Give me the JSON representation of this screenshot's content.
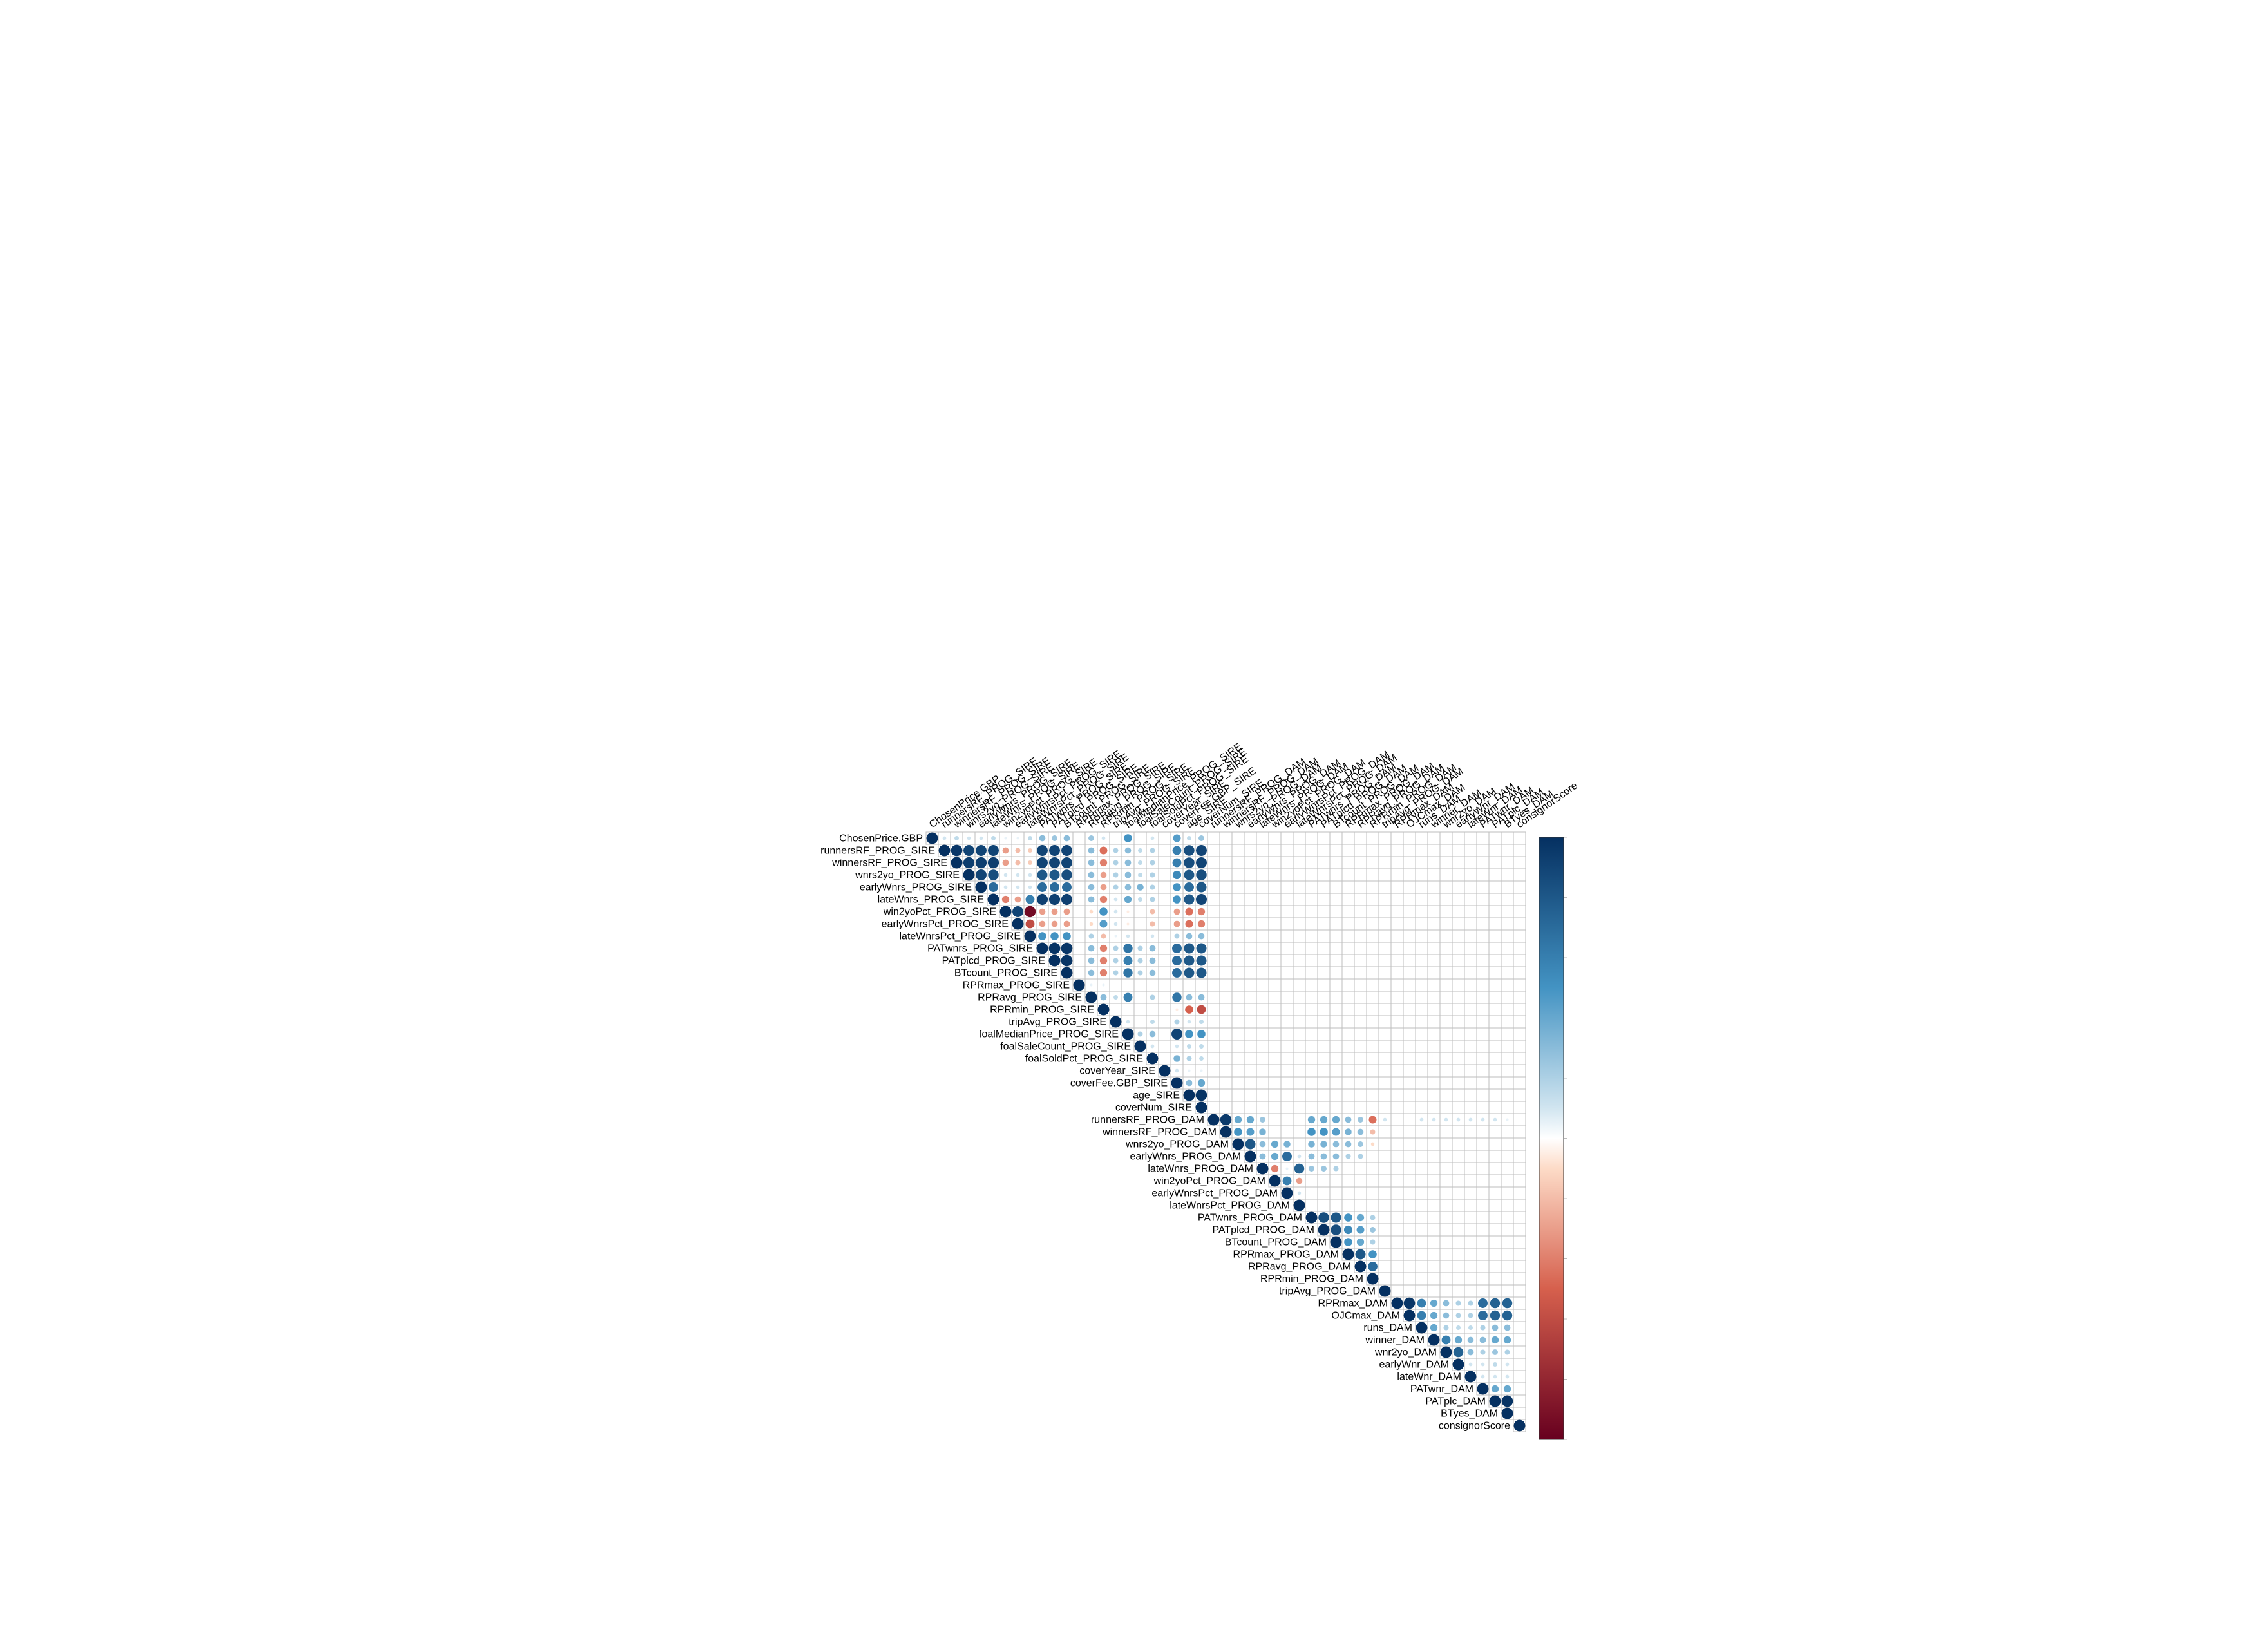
{
  "chart_data": {
    "type": "heatmap",
    "subtype": "correlation-upper-circle",
    "title": "",
    "variables": [
      "ChosenPrice.GBP",
      "runnersRF_PROG_SIRE",
      "winnersRF_PROG_SIRE",
      "wnrs2yo_PROG_SIRE",
      "earlyWnrs_PROG_SIRE",
      "lateWnrs_PROG_SIRE",
      "win2yoPct_PROG_SIRE",
      "earlyWnrsPct_PROG_SIRE",
      "lateWnrsPct_PROG_SIRE",
      "PATwnrs_PROG_SIRE",
      "PATplcd_PROG_SIRE",
      "BTcount_PROG_SIRE",
      "RPRmax_PROG_SIRE",
      "RPRavg_PROG_SIRE",
      "RPRmin_PROG_SIRE",
      "tripAvg_PROG_SIRE",
      "foalMedianPrice_PROG_SIRE",
      "foalSaleCount_PROG_SIRE",
      "foalSoldPct_PROG_SIRE",
      "coverYear_SIRE",
      "coverFee.GBP_SIRE",
      "age_SIRE",
      "coverNum_SIRE",
      "runnersRF_PROG_DAM",
      "winnersRF_PROG_DAM",
      "wnrs2yo_PROG_DAM",
      "earlyWnrs_PROG_DAM",
      "lateWnrs_PROG_DAM",
      "win2yoPct_PROG_DAM",
      "earlyWnrsPct_PROG_DAM",
      "lateWnrsPct_PROG_DAM",
      "PATwnrs_PROG_DAM",
      "PATplcd_PROG_DAM",
      "BTcount_PROG_DAM",
      "RPRmax_PROG_DAM",
      "RPRavg_PROG_DAM",
      "RPRmin_PROG_DAM",
      "tripAvg_PROG_DAM",
      "RPRmax_DAM",
      "OJCmax_DAM",
      "runs_DAM",
      "winner_DAM",
      "wnr2yo_DAM",
      "earlyWnr_DAM",
      "lateWnr_DAM",
      "PATwnr_DAM",
      "PATplc_DAM",
      "BTyes_DAM",
      "consignorScore"
    ],
    "correlations": [
      {
        "i": 0,
        "j": [
          1,
          2,
          3,
          4,
          5,
          6,
          7,
          8,
          9,
          10,
          11,
          13,
          14,
          16,
          18,
          20,
          21,
          22
        ],
        "r": [
          0.1,
          0.15,
          0.1,
          0.1,
          0.15,
          0.05,
          0.05,
          0.15,
          0.3,
          0.25,
          0.3,
          0.25,
          0.1,
          0.5,
          0.1,
          0.45,
          0.15,
          0.25
        ]
      },
      {
        "i": 1,
        "j": [
          2,
          3,
          4,
          5,
          6,
          7,
          8,
          9,
          10,
          11,
          13,
          14,
          15,
          16,
          17,
          18,
          20,
          21,
          22
        ],
        "r": [
          0.97,
          0.9,
          0.9,
          0.9,
          -0.3,
          -0.2,
          -0.15,
          0.9,
          0.9,
          0.9,
          0.3,
          -0.45,
          0.2,
          0.3,
          0.15,
          0.2,
          0.6,
          0.85,
          0.9
        ]
      },
      {
        "i": 2,
        "j": [
          3,
          4,
          5,
          6,
          7,
          8,
          9,
          10,
          11,
          13,
          14,
          15,
          16,
          17,
          18,
          20,
          21,
          22
        ],
        "r": [
          0.93,
          0.93,
          0.93,
          -0.3,
          -0.2,
          -0.15,
          0.9,
          0.9,
          0.9,
          0.3,
          -0.4,
          0.2,
          0.3,
          0.15,
          0.2,
          0.6,
          0.85,
          0.9
        ]
      },
      {
        "i": 3,
        "j": [
          4,
          5,
          6,
          7,
          8,
          9,
          10,
          11,
          13,
          14,
          15,
          16,
          17,
          18,
          20,
          21,
          22
        ],
        "r": [
          0.9,
          0.85,
          0.1,
          0.1,
          0.1,
          0.8,
          0.8,
          0.85,
          0.3,
          -0.3,
          0.2,
          0.3,
          0.15,
          0.2,
          0.55,
          0.8,
          0.85
        ]
      },
      {
        "i": 4,
        "j": [
          5,
          6,
          7,
          8,
          9,
          10,
          11,
          13,
          14,
          15,
          16,
          17,
          18,
          20,
          21,
          22
        ],
        "r": [
          0.7,
          0.1,
          0.1,
          0.1,
          0.7,
          0.7,
          0.7,
          0.3,
          -0.3,
          0.2,
          0.3,
          0.35,
          0.2,
          0.5,
          0.7,
          0.8
        ]
      },
      {
        "i": 5,
        "j": [
          6,
          7,
          8,
          9,
          10,
          11,
          13,
          14,
          15,
          16,
          17,
          18,
          20,
          21,
          22
        ],
        "r": [
          -0.4,
          -0.3,
          0.6,
          0.92,
          0.92,
          0.92,
          0.3,
          -0.4,
          0.1,
          0.4,
          0.15,
          0.2,
          0.5,
          0.8,
          0.9
        ]
      },
      {
        "i": 6,
        "j": [
          7,
          8,
          9,
          10,
          11,
          13,
          14,
          15,
          16,
          18,
          20,
          21,
          22
        ],
        "r": [
          0.9,
          -0.95,
          -0.3,
          -0.3,
          -0.3,
          -0.1,
          0.5,
          0.1,
          -0.05,
          -0.2,
          -0.3,
          -0.45,
          -0.4
        ]
      },
      {
        "i": 7,
        "j": [
          8,
          9,
          10,
          11,
          13,
          14,
          15,
          16,
          18,
          20,
          21,
          22
        ],
        "r": [
          -0.6,
          -0.3,
          -0.3,
          -0.3,
          -0.1,
          0.45,
          0.1,
          -0.05,
          -0.2,
          -0.3,
          -0.45,
          -0.4
        ]
      },
      {
        "i": 8,
        "j": [
          9,
          10,
          11,
          13,
          14,
          15,
          16,
          18,
          20,
          21,
          22
        ],
        "r": [
          0.5,
          0.5,
          0.5,
          0.2,
          -0.2,
          0.05,
          0.1,
          0.1,
          0.2,
          0.3,
          0.3
        ]
      },
      {
        "i": 9,
        "j": [
          10,
          11,
          13,
          14,
          15,
          16,
          17,
          18,
          20,
          21,
          22
        ],
        "r": [
          0.98,
          0.97,
          0.3,
          -0.4,
          0.2,
          0.65,
          0.2,
          0.3,
          0.7,
          0.8,
          0.8
        ]
      },
      {
        "i": 10,
        "j": [
          11,
          13,
          14,
          15,
          16,
          17,
          18,
          20,
          21,
          22
        ],
        "r": [
          0.98,
          0.3,
          -0.4,
          0.2,
          0.6,
          0.2,
          0.3,
          0.7,
          0.8,
          0.8
        ]
      },
      {
        "i": 11,
        "j": [
          13,
          14,
          15,
          16,
          17,
          18,
          20,
          21,
          22
        ],
        "r": [
          0.3,
          -0.4,
          0.2,
          0.65,
          0.2,
          0.3,
          0.7,
          0.8,
          0.8
        ]
      },
      {
        "i": 12,
        "j": [
          13,
          14
        ],
        "r": [
          0.05,
          0.05
        ]
      },
      {
        "i": 13,
        "j": [
          14,
          15,
          16,
          18,
          20,
          21,
          22
        ],
        "r": [
          0.3,
          0.15,
          0.6,
          0.2,
          0.65,
          0.3,
          0.3
        ]
      },
      {
        "i": 14,
        "j": [
          20,
          21,
          22
        ],
        "r": [
          -0.05,
          -0.5,
          -0.6
        ]
      },
      {
        "i": 15,
        "j": [
          16,
          18,
          20,
          21,
          22
        ],
        "r": [
          0.1,
          0.15,
          0.2,
          0.1,
          0.15
        ]
      },
      {
        "i": 16,
        "j": [
          17,
          18,
          20,
          21,
          22
        ],
        "r": [
          0.2,
          0.3,
          0.9,
          0.5,
          0.5
        ]
      },
      {
        "i": 17,
        "j": [
          18,
          20,
          21,
          22
        ],
        "r": [
          0.1,
          0.1,
          0.15,
          0.15
        ]
      },
      {
        "i": 18,
        "j": [
          20,
          21,
          22
        ],
        "r": [
          0.35,
          0.2,
          0.15
        ]
      },
      {
        "i": 19,
        "j": [
          20,
          21,
          22
        ],
        "r": [
          0.1,
          0.05,
          0.05
        ]
      },
      {
        "i": 20,
        "j": [
          21,
          22
        ],
        "r": [
          0.3,
          0.4
        ]
      },
      {
        "i": 21,
        "j": [
          22
        ],
        "r": [
          0.98
        ]
      },
      {
        "i": 23,
        "j": [
          24,
          25,
          26,
          27,
          31,
          32,
          33,
          34,
          35,
          36,
          37,
          40,
          41,
          42,
          43,
          44,
          45,
          46,
          47
        ],
        "r": [
          0.95,
          0.4,
          0.4,
          0.25,
          0.4,
          0.4,
          0.4,
          0.3,
          0.25,
          -0.45,
          0.1,
          0.1,
          0.1,
          0.1,
          0.1,
          0.1,
          0.1,
          0.1,
          0.05
        ]
      },
      {
        "i": 24,
        "j": [
          25,
          26,
          27,
          31,
          32,
          33,
          34,
          35,
          36
        ],
        "r": [
          0.5,
          0.45,
          0.35,
          0.5,
          0.5,
          0.45,
          0.35,
          0.3,
          -0.2
        ]
      },
      {
        "i": 25,
        "j": [
          26,
          27,
          28,
          29,
          31,
          32,
          33,
          34,
          35,
          36
        ],
        "r": [
          0.8,
          0.3,
          0.4,
          0.35,
          0.35,
          0.35,
          0.3,
          0.3,
          0.25,
          -0.1
        ]
      },
      {
        "i": 26,
        "j": [
          27,
          28,
          29,
          30,
          31,
          32,
          33,
          34,
          35
        ],
        "r": [
          0.3,
          0.4,
          0.7,
          0.1,
          0.3,
          0.3,
          0.3,
          0.2,
          0.2
        ]
      },
      {
        "i": 27,
        "j": [
          28,
          29,
          30,
          31,
          32,
          33
        ],
        "r": [
          -0.4,
          0.05,
          0.75,
          0.25,
          0.25,
          0.2
        ]
      },
      {
        "i": 28,
        "j": [
          29,
          30
        ],
        "r": [
          0.6,
          -0.3
        ]
      },
      {
        "i": 29,
        "j": [
          30
        ],
        "r": [
          0.1
        ]
      },
      {
        "i": 31,
        "j": [
          32,
          33,
          34,
          35,
          36
        ],
        "r": [
          0.85,
          0.8,
          0.5,
          0.4,
          0.2
        ]
      },
      {
        "i": 32,
        "j": [
          33,
          34,
          35,
          36
        ],
        "r": [
          0.85,
          0.55,
          0.45,
          0.25
        ]
      },
      {
        "i": 33,
        "j": [
          34,
          35,
          36
        ],
        "r": [
          0.5,
          0.4,
          0.2
        ]
      },
      {
        "i": 34,
        "j": [
          35,
          36
        ],
        "r": [
          0.8,
          0.5
        ]
      },
      {
        "i": 35,
        "j": [
          36
        ],
        "r": [
          0.7
        ]
      },
      {
        "i": 38,
        "j": [
          39,
          40,
          41,
          42,
          43,
          44,
          45,
          46,
          47
        ],
        "r": [
          0.97,
          0.6,
          0.4,
          0.3,
          0.2,
          0.2,
          0.7,
          0.75,
          0.75
        ]
      },
      {
        "i": 39,
        "j": [
          40,
          41,
          42,
          43,
          44,
          45,
          46,
          47
        ],
        "r": [
          0.6,
          0.4,
          0.3,
          0.2,
          0.2,
          0.7,
          0.75,
          0.75
        ]
      },
      {
        "i": 40,
        "j": [
          41,
          42,
          43,
          44,
          45,
          46,
          47
        ],
        "r": [
          0.4,
          0.2,
          0.15,
          0.15,
          0.2,
          0.3,
          0.3
        ]
      },
      {
        "i": 41,
        "j": [
          42,
          43,
          44,
          45,
          46,
          47
        ],
        "r": [
          0.6,
          0.4,
          0.3,
          0.3,
          0.4,
          0.4
        ]
      },
      {
        "i": 42,
        "j": [
          43,
          44,
          45,
          46,
          47
        ],
        "r": [
          0.75,
          0.3,
          0.2,
          0.25,
          0.2
        ]
      },
      {
        "i": 43,
        "j": [
          44,
          45,
          46,
          47
        ],
        "r": [
          0.1,
          0.1,
          0.15,
          0.1
        ]
      },
      {
        "i": 44,
        "j": [
          45,
          46,
          47
        ],
        "r": [
          0.1,
          0.1,
          0.1
        ]
      },
      {
        "i": 45,
        "j": [
          46,
          47
        ],
        "r": [
          0.4,
          0.4
        ]
      },
      {
        "i": 46,
        "j": [
          47
        ],
        "r": [
          0.98
        ]
      }
    ],
    "diagonal": 1,
    "color_scale": {
      "range": [
        -1,
        1
      ],
      "stops": [
        {
          "v": -1.0,
          "color": "#67001f"
        },
        {
          "v": -0.5,
          "color": "#d6604d"
        },
        {
          "v": -0.1,
          "color": "#fddbc7"
        },
        {
          "v": 0.0,
          "color": "#ffffff"
        },
        {
          "v": 0.1,
          "color": "#d1e5f0"
        },
        {
          "v": 0.5,
          "color": "#4393c3"
        },
        {
          "v": 1.0,
          "color": "#053061"
        }
      ]
    },
    "legend": {
      "type": "colorbar",
      "position": "right"
    },
    "grid": true
  }
}
